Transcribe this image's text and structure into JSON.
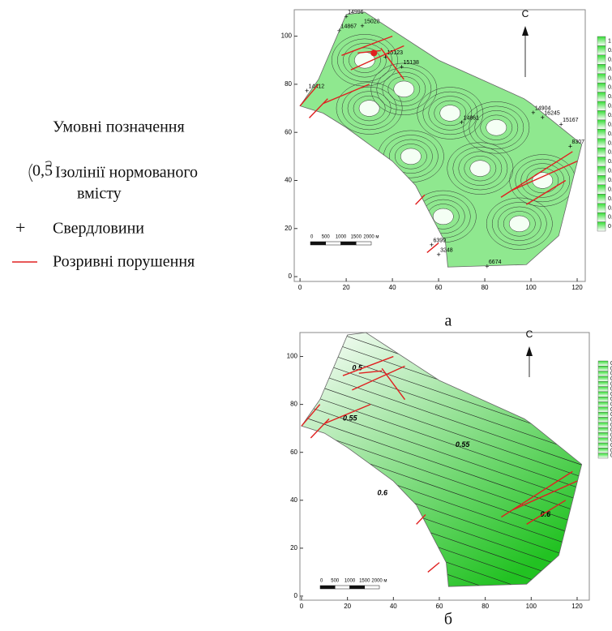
{
  "legend": {
    "title": "Умовні позначення",
    "isoline_sample": "0,5",
    "isoline_text_1": "Ізолінії нормованого",
    "isoline_text_2": "вмісту",
    "well_symbol": "+",
    "wells": "Свердловини",
    "faults": "Розривні порушення"
  },
  "maps": [
    {
      "label": "а",
      "north": "С",
      "xlim": [
        -2.5,
        123.5
      ],
      "ylim": [
        -2,
        111
      ],
      "xticks": [
        0,
        20,
        40,
        60,
        80,
        100,
        120
      ],
      "yticks": [
        0,
        20,
        40,
        60,
        80,
        100
      ],
      "colorbar": [
        1,
        0.95,
        0.9,
        0.85,
        0.8,
        0.75,
        0.7,
        0.65,
        0.6,
        0.55,
        0.5,
        0.45,
        0.4,
        0.35,
        0.3,
        0.25,
        0.2,
        0.15,
        0.1,
        0.05,
        0
      ],
      "scalebar": [
        "0",
        "500",
        "1000",
        "1500",
        "2000 м"
      ],
      "wells": [
        "14996",
        "15028",
        "14867",
        "15123",
        "15138",
        "14861",
        "14904",
        "16245",
        "15167",
        "8307",
        "6399",
        "3248",
        "6674",
        "14412"
      ]
    },
    {
      "label": "б",
      "north": "С",
      "xlim": [
        -0.7,
        125.3
      ],
      "ylim": [
        -1.7,
        110
      ],
      "xticks": [
        0,
        20,
        40,
        60,
        80,
        100,
        120
      ],
      "yticks": [
        0,
        20,
        40,
        60,
        80,
        100
      ],
      "colorbar": [
        "0.6",
        "0.6",
        "0.6",
        "0.6",
        "0.6",
        "0.6",
        "0.6",
        "0.5",
        "0.5",
        "0.5",
        "0.5",
        "0.5",
        "0.5",
        "0.5",
        "0.5",
        "0.5",
        "0.5",
        "0.4",
        "0.4"
      ],
      "scalebar": [
        "0",
        "500",
        "1000",
        "1500",
        "2000 м"
      ],
      "contour_labels": [
        0.5,
        0.55,
        0.55,
        0.6,
        0.6
      ]
    }
  ]
}
